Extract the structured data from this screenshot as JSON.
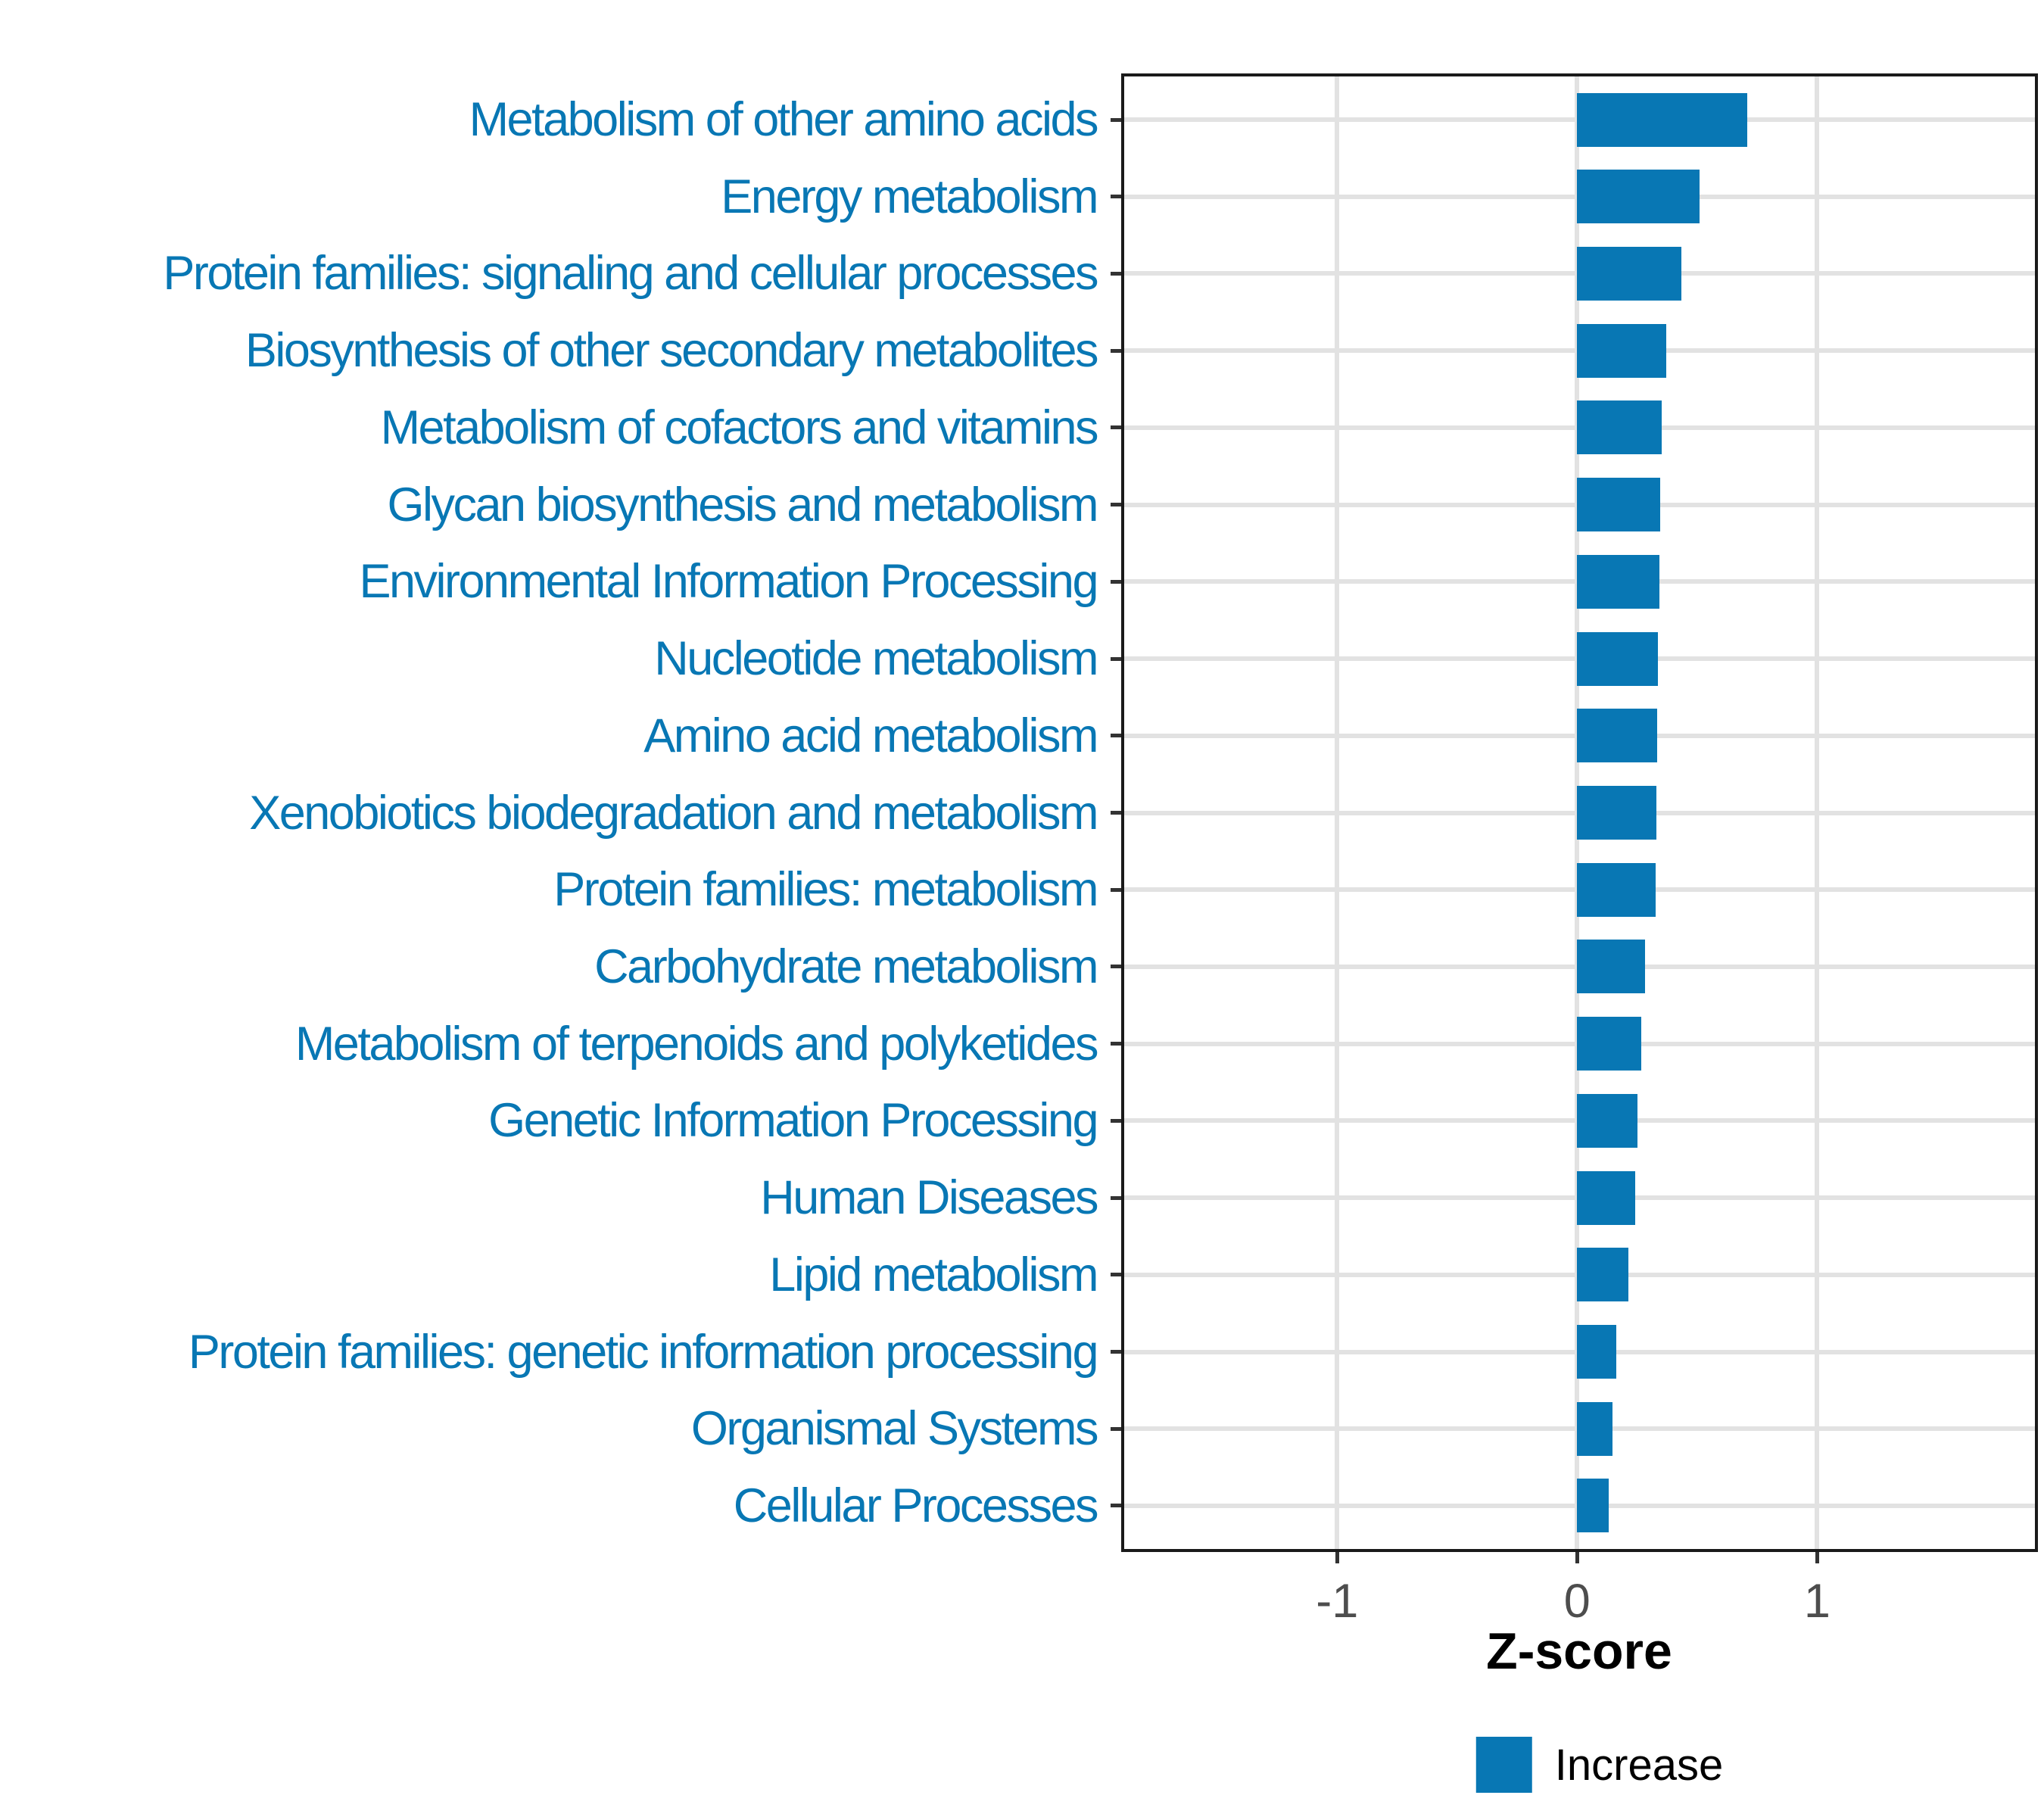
{
  "figure": {
    "background": "#FFFFFF"
  },
  "chart_data": {
    "type": "bar",
    "orientation": "horizontal",
    "title": "",
    "xlabel": "Z-score",
    "ylabel": "",
    "categories": [
      "Metabolism of other amino acids",
      "Energy metabolism",
      "Protein families: signaling and cellular processes",
      "Biosynthesis of other secondary metabolites",
      "Metabolism of cofactors and vitamins",
      "Glycan biosynthesis and metabolism",
      "Environmental Information Processing",
      "Nucleotide metabolism",
      "Amino acid metabolism",
      "Xenobiotics biodegradation and metabolism",
      "Protein families: metabolism",
      "Carbohydrate metabolism",
      "Metabolism of terpenoids and polyketides",
      "Genetic Information Processing",
      "Human Diseases",
      "Lipid metabolism",
      "Protein families: genetic information processing",
      "Organismal Systems",
      "Cellular Processes"
    ],
    "values": [
      0.71,
      0.51,
      0.435,
      0.37,
      0.352,
      0.346,
      0.342,
      0.338,
      0.333,
      0.33,
      0.327,
      0.282,
      0.267,
      0.25,
      0.242,
      0.212,
      0.162,
      0.148,
      0.133
    ],
    "x_ticks": [
      -1,
      0,
      1
    ],
    "x_tick_labels": [
      "-1",
      "0",
      "1"
    ],
    "xlim": [
      -1.9,
      1.92
    ],
    "grid": "major-only",
    "gridline_color": "#E2E2E2",
    "panel_border_color": "#1A1A1A",
    "bar_color": "#0877B4",
    "category_label_color": "#0877B4",
    "axis_tick_label_color": "#4D4D4D",
    "legend": {
      "position": "bottom",
      "entries": [
        {
          "label": "Increase",
          "color": "#0877B4"
        }
      ]
    }
  }
}
